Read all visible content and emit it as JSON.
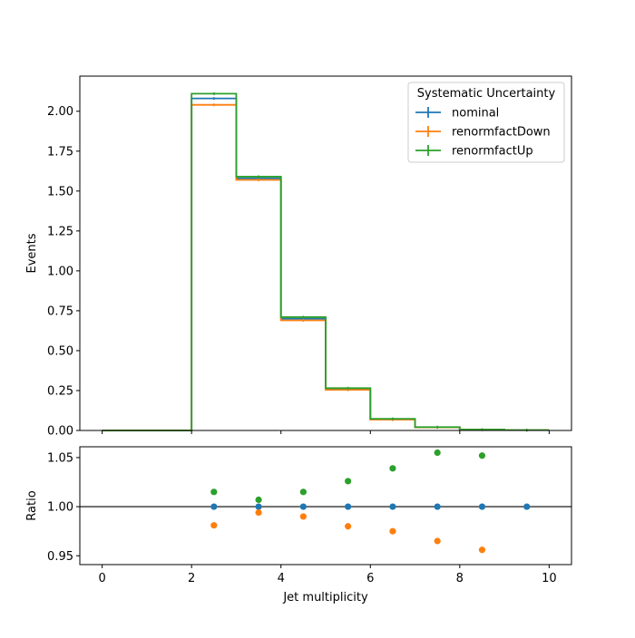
{
  "chart_data": [
    {
      "type": "step",
      "xlabel": "",
      "ylabel": "Events",
      "xlim": [
        -0.5,
        10.5
      ],
      "ylim": [
        0,
        2.22
      ],
      "yticks": [
        0.0,
        0.25,
        0.5,
        0.75,
        1.0,
        1.25,
        1.5,
        1.75,
        2.0
      ],
      "ytick_labels": [
        "0.00",
        "0.25",
        "0.50",
        "0.75",
        "1.00",
        "1.25",
        "1.50",
        "1.75",
        "2.00"
      ],
      "xticks": [
        0,
        2,
        4,
        6,
        8,
        10
      ],
      "bin_edges": [
        0,
        1,
        2,
        3,
        4,
        5,
        6,
        7,
        8,
        9,
        10
      ],
      "legend": {
        "title": "Systematic Uncertainty",
        "placement": "top-right"
      },
      "series": [
        {
          "name": "nominal",
          "color": "#1f77b4",
          "values": [
            0.0,
            0.0,
            2.08,
            1.58,
            0.7,
            0.26,
            0.07,
            0.02,
            0.005,
            0.002
          ]
        },
        {
          "name": "renormfactDown",
          "color": "#ff7f0e",
          "values": [
            0.0,
            0.0,
            2.04,
            1.57,
            0.69,
            0.255,
            0.068,
            0.019,
            0.0048,
            0.002
          ]
        },
        {
          "name": "renormfactUp",
          "color": "#2ca02c",
          "values": [
            0.0,
            0.0,
            2.11,
            1.59,
            0.71,
            0.265,
            0.073,
            0.021,
            0.0053,
            0.002
          ]
        }
      ]
    },
    {
      "type": "scatter",
      "xlabel": "Jet multiplicity",
      "ylabel": "Ratio",
      "xlim": [
        -0.5,
        10.5
      ],
      "ylim": [
        0.941,
        1.061
      ],
      "xticks": [
        0,
        2,
        4,
        6,
        8,
        10
      ],
      "xtick_labels": [
        "0",
        "2",
        "4",
        "6",
        "8",
        "10"
      ],
      "yticks": [
        0.95,
        1.0,
        1.05
      ],
      "ytick_labels": [
        "0.95",
        "1.00",
        "1.05"
      ],
      "reference_line": 1.0,
      "series": [
        {
          "name": "nominal",
          "color": "#1f77b4",
          "x": [
            2.5,
            3.5,
            4.5,
            5.5,
            6.5,
            7.5,
            8.5,
            9.5
          ],
          "y": [
            1.0,
            1.0,
            1.0,
            1.0,
            1.0,
            1.0,
            1.0,
            1.0
          ]
        },
        {
          "name": "renormfactDown",
          "color": "#ff7f0e",
          "x": [
            2.5,
            3.5,
            4.5,
            5.5,
            6.5,
            7.5,
            8.5
          ],
          "y": [
            0.981,
            0.994,
            0.99,
            0.98,
            0.975,
            0.965,
            0.956
          ]
        },
        {
          "name": "renormfactUp",
          "color": "#2ca02c",
          "x": [
            2.5,
            3.5,
            4.5,
            5.5,
            6.5,
            7.5,
            8.5
          ],
          "y": [
            1.015,
            1.007,
            1.015,
            1.026,
            1.039,
            1.055,
            1.052
          ]
        }
      ]
    }
  ]
}
